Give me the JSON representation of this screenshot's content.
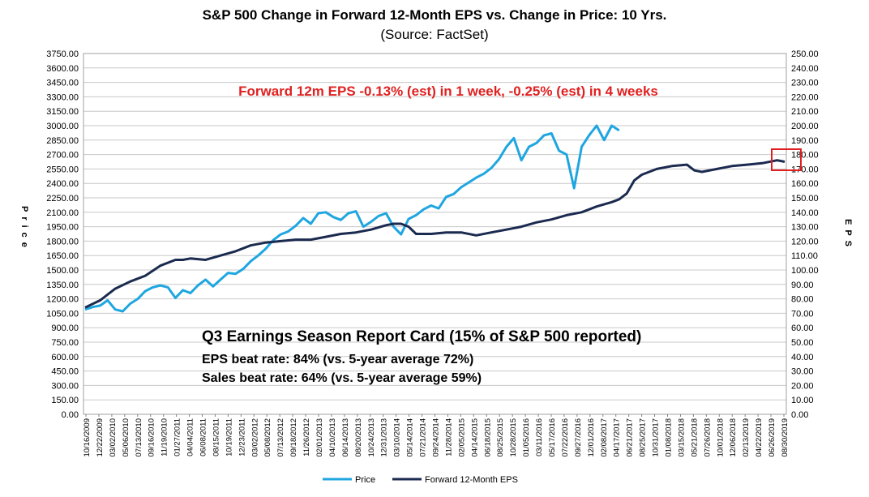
{
  "chart_data": {
    "type": "line",
    "title": "S&P 500 Change in Forward 12-Month EPS vs. Change in Price: 10 Yrs.",
    "subtitle": "(Source: FactSet)",
    "ylabel_left": "Price",
    "ylabel_right": "EPS",
    "ylim_left": [
      0,
      3750
    ],
    "ylim_right": [
      0,
      250
    ],
    "yticks_left": [
      "3750.00",
      "3600.00",
      "3450.00",
      "3300.00",
      "3150.00",
      "3000.00",
      "2850.00",
      "2700.00",
      "2550.00",
      "2400.00",
      "2250.00",
      "2100.00",
      "1950.00",
      "1800.00",
      "1650.00",
      "1500.00",
      "1350.00",
      "1200.00",
      "1050.00",
      "900.00",
      "750.00",
      "600.00",
      "450.00",
      "300.00",
      "150.00",
      "0.00"
    ],
    "yticks_right": [
      "250.00",
      "240.00",
      "230.00",
      "220.00",
      "210.00",
      "200.00",
      "190.00",
      "180.00",
      "170.00",
      "160.00",
      "150.00",
      "140.00",
      "130.00",
      "120.00",
      "110.00",
      "100.00",
      "90.00",
      "80.00",
      "70.00",
      "60.00",
      "50.00",
      "40.00",
      "30.00",
      "20.00",
      "10.00",
      "0.00"
    ],
    "x_tick_labels": [
      "10/16/2009",
      "12/22/2009",
      "03/02/2010",
      "05/06/2010",
      "07/13/2010",
      "09/16/2010",
      "11/19/2010",
      "01/27/2011",
      "04/04/2011",
      "06/08/2011",
      "08/15/2011",
      "10/19/2011",
      "12/23/2011",
      "03/02/2012",
      "05/08/2012",
      "07/13/2012",
      "09/18/2012",
      "11/26/2012",
      "02/01/2013",
      "04/10/2013",
      "06/14/2013",
      "08/20/2013",
      "10/24/2013",
      "12/31/2013",
      "03/10/2014",
      "05/14/2014",
      "07/21/2014",
      "09/24/2014",
      "11/28/2014",
      "02/05/2015",
      "04/14/2015",
      "06/18/2015",
      "08/25/2015",
      "10/28/2015",
      "01/05/2016",
      "03/11/2016",
      "05/17/2016",
      "07/22/2016",
      "09/27/2016",
      "12/01/2016",
      "02/08/2017",
      "04/17/2017",
      "06/21/2017",
      "08/25/2017",
      "10/31/2017",
      "01/08/2018",
      "03/15/2018",
      "05/21/2018",
      "07/26/2018",
      "10/01/2018",
      "12/06/2018",
      "02/13/2019",
      "04/22/2019",
      "06/26/2019",
      "08/30/2019"
    ],
    "series": [
      {
        "name": "Price",
        "axis": "left",
        "color": "#1fa6e0",
        "points": [
          [
            0,
            1090
          ],
          [
            1,
            1115
          ],
          [
            2,
            1130
          ],
          [
            3,
            1185
          ],
          [
            4,
            1090
          ],
          [
            5,
            1070
          ],
          [
            6,
            1150
          ],
          [
            7,
            1200
          ],
          [
            8,
            1280
          ],
          [
            9,
            1320
          ],
          [
            10,
            1340
          ],
          [
            11,
            1320
          ],
          [
            12,
            1210
          ],
          [
            13,
            1290
          ],
          [
            14,
            1260
          ],
          [
            15,
            1340
          ],
          [
            16,
            1400
          ],
          [
            17,
            1330
          ],
          [
            18,
            1400
          ],
          [
            19,
            1470
          ],
          [
            20,
            1460
          ],
          [
            21,
            1510
          ],
          [
            22,
            1590
          ],
          [
            23,
            1650
          ],
          [
            24,
            1720
          ],
          [
            25,
            1810
          ],
          [
            26,
            1870
          ],
          [
            27,
            1900
          ],
          [
            28,
            1960
          ],
          [
            29,
            2040
          ],
          [
            30,
            1980
          ],
          [
            31,
            2090
          ],
          [
            32,
            2100
          ],
          [
            33,
            2050
          ],
          [
            34,
            2020
          ],
          [
            35,
            2090
          ],
          [
            36,
            2110
          ],
          [
            37,
            1950
          ],
          [
            38,
            2000
          ],
          [
            39,
            2060
          ],
          [
            40,
            2090
          ],
          [
            41,
            1950
          ],
          [
            42,
            1870
          ],
          [
            43,
            2030
          ],
          [
            44,
            2070
          ],
          [
            45,
            2130
          ],
          [
            46,
            2170
          ],
          [
            47,
            2140
          ],
          [
            48,
            2260
          ],
          [
            49,
            2290
          ],
          [
            50,
            2360
          ],
          [
            51,
            2410
          ],
          [
            52,
            2460
          ],
          [
            53,
            2500
          ],
          [
            54,
            2560
          ],
          [
            55,
            2650
          ],
          [
            56,
            2780
          ],
          [
            57,
            2870
          ],
          [
            58,
            2640
          ],
          [
            59,
            2780
          ],
          [
            60,
            2820
          ],
          [
            61,
            2900
          ],
          [
            62,
            2920
          ],
          [
            63,
            2740
          ],
          [
            64,
            2700
          ],
          [
            65,
            2350
          ],
          [
            66,
            2780
          ],
          [
            67,
            2900
          ],
          [
            68,
            3000
          ],
          [
            69,
            2850
          ],
          [
            70,
            3000
          ],
          [
            71,
            2950
          ]
        ]
      },
      {
        "name": "Forward 12-Month EPS",
        "axis": "right",
        "color": "#1b2a4f",
        "points": [
          [
            0,
            74
          ],
          [
            2,
            79
          ],
          [
            4,
            87
          ],
          [
            6,
            92
          ],
          [
            8,
            96
          ],
          [
            10,
            103
          ],
          [
            12,
            107
          ],
          [
            13,
            107
          ],
          [
            14,
            108
          ],
          [
            16,
            107
          ],
          [
            18,
            110
          ],
          [
            20,
            113
          ],
          [
            22,
            117
          ],
          [
            24,
            119
          ],
          [
            26,
            120
          ],
          [
            28,
            121
          ],
          [
            30,
            121
          ],
          [
            32,
            123
          ],
          [
            34,
            125
          ],
          [
            36,
            126
          ],
          [
            38,
            128
          ],
          [
            40,
            131
          ],
          [
            41,
            132
          ],
          [
            42,
            132
          ],
          [
            43,
            130
          ],
          [
            44,
            125
          ],
          [
            46,
            125
          ],
          [
            48,
            126
          ],
          [
            50,
            126
          ],
          [
            52,
            124
          ],
          [
            54,
            126
          ],
          [
            56,
            128
          ],
          [
            58,
            130
          ],
          [
            60,
            133
          ],
          [
            62,
            135
          ],
          [
            64,
            138
          ],
          [
            66,
            140
          ],
          [
            68,
            144
          ],
          [
            70,
            147
          ],
          [
            71,
            149
          ],
          [
            72,
            153
          ],
          [
            73,
            162
          ],
          [
            74,
            166
          ],
          [
            76,
            170
          ],
          [
            78,
            172
          ],
          [
            80,
            173
          ],
          [
            81,
            169
          ],
          [
            82,
            168
          ],
          [
            84,
            170
          ],
          [
            86,
            172
          ],
          [
            88,
            173
          ],
          [
            90,
            174
          ],
          [
            92,
            176
          ],
          [
            93,
            175
          ]
        ]
      }
    ],
    "x_max": 93,
    "annotation": "Forward 12m EPS -0.13% (est) in 1 week, -0.25% (est) in 4 weeks",
    "report_card": {
      "title": "Q3 Earnings Season Report Card (15% of S&P 500 reported)",
      "line1": "EPS beat rate: 84% (vs. 5-year average 72%)",
      "line2": "Sales beat rate: 64% (vs. 5-year average 59%)"
    },
    "legend": {
      "position": "bottom-center",
      "items": [
        "Price",
        "Forward 12-Month EPS"
      ]
    },
    "highlight_color": "#e02020",
    "annotation_color": "#e02020"
  }
}
